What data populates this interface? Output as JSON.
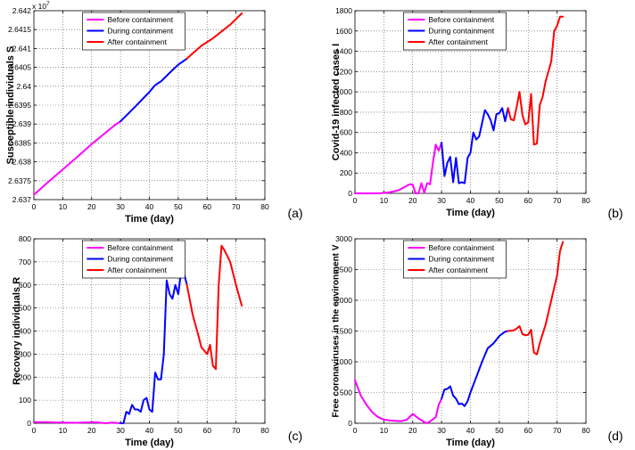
{
  "legend_labels": [
    "Before containment",
    "During containment",
    "After containment"
  ],
  "series_colors": {
    "before": "#ff00ff",
    "during": "#0000ff",
    "after": "#ff0000"
  },
  "chart_data": [
    {
      "id": "a",
      "type": "line",
      "panel_label": "(a)",
      "xlabel": "Time (day)",
      "ylabel": "Susceptible individuals S",
      "exponent_label": "x 10",
      "exponent_power": "7",
      "xlim": [
        0,
        80
      ],
      "ylim": [
        2.637,
        2.642
      ],
      "xticks": [
        0,
        10,
        20,
        30,
        40,
        50,
        60,
        70,
        80
      ],
      "yticks": [
        2.637,
        2.6375,
        2.638,
        2.6385,
        2.639,
        2.6395,
        2.64,
        2.6405,
        2.641,
        2.6415,
        2.642
      ],
      "ytick_labels": [
        "2.637",
        "2.6375",
        "2.638",
        "2.6385",
        "2.639",
        "2.6395",
        "2.64",
        "2.6405",
        "2.641",
        "2.6415",
        "2.642"
      ],
      "legend": "top-center",
      "grid": true,
      "series": [
        {
          "name": "Before containment",
          "color_key": "before",
          "x": [
            0,
            5,
            10,
            15,
            20,
            25,
            28,
            30
          ],
          "y": [
            2.63713,
            2.63747,
            2.6378,
            2.63813,
            2.63847,
            2.63878,
            2.63897,
            2.63907
          ]
        },
        {
          "name": "During containment",
          "color_key": "during",
          "x": [
            30,
            35,
            40,
            42,
            44,
            48,
            50,
            53
          ],
          "y": [
            2.63907,
            2.63945,
            2.63985,
            2.64003,
            2.64013,
            2.64043,
            2.64057,
            2.64073
          ]
        },
        {
          "name": "After containment",
          "color_key": "after",
          "x": [
            53,
            55,
            58,
            60,
            62,
            65,
            68,
            72
          ],
          "y": [
            2.64073,
            2.64087,
            2.64107,
            2.64117,
            2.64127,
            2.64145,
            2.64163,
            2.64193
          ]
        }
      ]
    },
    {
      "id": "b",
      "type": "line",
      "panel_label": "(b)",
      "xlabel": "Time (day)",
      "ylabel": "Covid-19 infected cases I",
      "xlim": [
        0,
        80
      ],
      "ylim": [
        0,
        1800
      ],
      "xticks": [
        0,
        10,
        20,
        30,
        40,
        50,
        60,
        70,
        80
      ],
      "yticks": [
        0,
        200,
        400,
        600,
        800,
        1000,
        1200,
        1400,
        1600,
        1800
      ],
      "ytick_labels": [
        "0",
        "200",
        "400",
        "600",
        "800",
        "1000",
        "1200",
        "1400",
        "1600",
        "1800"
      ],
      "legend": "top-center",
      "grid": true,
      "series": [
        {
          "name": "Before containment",
          "color_key": "before",
          "x": [
            0,
            8,
            10,
            12,
            15,
            18,
            19,
            20,
            21,
            22,
            23,
            24,
            25,
            26,
            27,
            28,
            29,
            30
          ],
          "y": [
            0,
            0,
            5,
            10,
            30,
            75,
            90,
            85,
            0,
            0,
            100,
            5,
            100,
            90,
            300,
            480,
            420,
            500
          ]
        },
        {
          "name": "During containment",
          "color_key": "during",
          "x": [
            30,
            31,
            32,
            33,
            34,
            35,
            36,
            37,
            38,
            39,
            40,
            41,
            42,
            43,
            44,
            45,
            46,
            47,
            48,
            49,
            50,
            51,
            52,
            53
          ],
          "y": [
            500,
            170,
            300,
            360,
            110,
            350,
            100,
            110,
            100,
            350,
            400,
            600,
            530,
            560,
            690,
            820,
            780,
            720,
            620,
            780,
            790,
            840,
            710,
            840
          ]
        },
        {
          "name": "After containment",
          "color_key": "after",
          "x": [
            53,
            54,
            55,
            56,
            57,
            58,
            59,
            60,
            61,
            62,
            63,
            64,
            65,
            66,
            67,
            68,
            69,
            70,
            71,
            72
          ],
          "y": [
            840,
            730,
            720,
            850,
            1000,
            770,
            680,
            700,
            980,
            480,
            490,
            870,
            950,
            1100,
            1200,
            1300,
            1600,
            1650,
            1740,
            1740
          ]
        }
      ]
    },
    {
      "id": "c",
      "type": "line",
      "panel_label": "(c)",
      "xlabel": "Time (day)",
      "ylabel": "Recovery individuals R",
      "xlim": [
        0,
        80
      ],
      "ylim": [
        0,
        800
      ],
      "xticks": [
        0,
        10,
        20,
        30,
        40,
        50,
        60,
        70,
        80
      ],
      "yticks": [
        0,
        100,
        200,
        300,
        400,
        500,
        600,
        700,
        800
      ],
      "ytick_labels": [
        "0",
        "100",
        "200",
        "300",
        "400",
        "500",
        "600",
        "700",
        "800"
      ],
      "legend": "top-center",
      "grid": true,
      "series": [
        {
          "name": "Before containment",
          "color_key": "before",
          "x": [
            0,
            5,
            10,
            15,
            20,
            22,
            25,
            27,
            30
          ],
          "y": [
            5,
            5,
            3,
            2,
            5,
            4,
            0,
            3,
            0
          ]
        },
        {
          "name": "During containment",
          "color_key": "during",
          "x": [
            30,
            31,
            32,
            33,
            34,
            35,
            36,
            37,
            38,
            39,
            40,
            41,
            42,
            43,
            44,
            45,
            46,
            47,
            48,
            49,
            50,
            51,
            52,
            53
          ],
          "y": [
            0,
            0,
            50,
            40,
            80,
            60,
            60,
            50,
            100,
            110,
            60,
            50,
            220,
            190,
            190,
            300,
            620,
            560,
            540,
            600,
            560,
            660,
            650,
            600
          ]
        },
        {
          "name": "After containment",
          "color_key": "after",
          "x": [
            53,
            55,
            57,
            58,
            60,
            61,
            62,
            63,
            64,
            65,
            66,
            68,
            70,
            72
          ],
          "y": [
            600,
            470,
            380,
            330,
            300,
            340,
            250,
            235,
            600,
            770,
            750,
            700,
            600,
            510
          ]
        }
      ]
    },
    {
      "id": "d",
      "type": "line",
      "panel_label": "(d)",
      "xlabel": "Time (day)",
      "ylabel": "Free coronaviruses in the environment V",
      "xlim": [
        0,
        80
      ],
      "ylim": [
        0,
        3000
      ],
      "xticks": [
        0,
        10,
        20,
        30,
        40,
        50,
        60,
        70,
        80
      ],
      "yticks": [
        0,
        500,
        1000,
        1500,
        2000,
        2500,
        3000
      ],
      "ytick_labels": [
        "0",
        "500",
        "1000",
        "1500",
        "2000",
        "2500",
        "3000"
      ],
      "legend": "top-center",
      "grid": true,
      "series": [
        {
          "name": "Before containment",
          "color_key": "before",
          "x": [
            0,
            2,
            4,
            6,
            8,
            10,
            12,
            14,
            16,
            18,
            20,
            22,
            24,
            25,
            26,
            28,
            29,
            30
          ],
          "y": [
            700,
            450,
            300,
            180,
            100,
            60,
            45,
            40,
            35,
            60,
            150,
            80,
            20,
            0,
            30,
            100,
            300,
            400
          ]
        },
        {
          "name": "During containment",
          "color_key": "during",
          "x": [
            30,
            31,
            32,
            33,
            34,
            35,
            36,
            37,
            38,
            39,
            40,
            42,
            44,
            46,
            48,
            50,
            52,
            53
          ],
          "y": [
            400,
            550,
            560,
            600,
            450,
            400,
            310,
            320,
            280,
            360,
            500,
            750,
            1000,
            1220,
            1300,
            1420,
            1490,
            1500
          ]
        },
        {
          "name": "After containment",
          "color_key": "after",
          "x": [
            53,
            55,
            56,
            57,
            58,
            59,
            60,
            61,
            62,
            63,
            64,
            65,
            66,
            68,
            70,
            71,
            72
          ],
          "y": [
            1500,
            1510,
            1540,
            1580,
            1450,
            1430,
            1440,
            1520,
            1150,
            1120,
            1300,
            1450,
            1600,
            2000,
            2400,
            2800,
            2950
          ]
        }
      ]
    }
  ]
}
